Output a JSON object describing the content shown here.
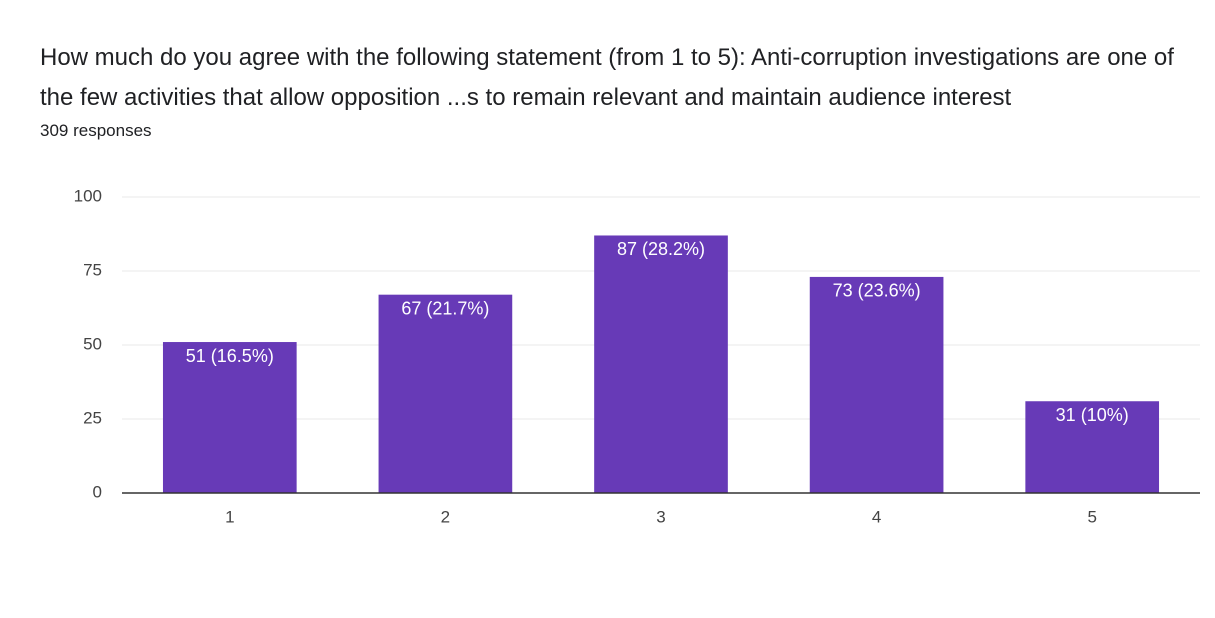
{
  "chart_data": {
    "type": "bar",
    "title": "How much do you agree with the following statement (from 1 to 5):  Anti-corruption investigations are one of the few activities that allow opposition ...s to remain relevant and maintain audience interest",
    "subtitle": "309 responses",
    "categories": [
      "1",
      "2",
      "3",
      "4",
      "5"
    ],
    "values": [
      51,
      67,
      87,
      73,
      31
    ],
    "value_labels": [
      "51 (16.5%)",
      "67 (21.7%)",
      "87 (28.2%)",
      "73 (23.6%)",
      "31 (10%)"
    ],
    "color": "#673ab7",
    "ylim": [
      0,
      100
    ],
    "yticks": [
      0,
      25,
      50,
      75,
      100
    ],
    "grid": true
  }
}
